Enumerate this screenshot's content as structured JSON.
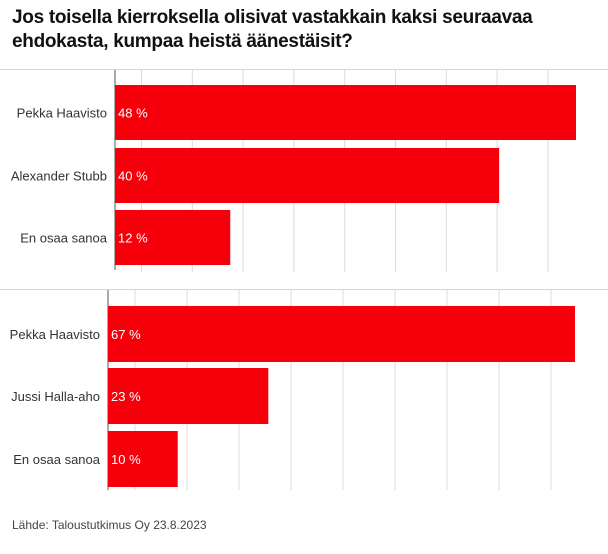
{
  "title": "Jos toisella kierroksella olisivat vastakkain kaksi seuraavaa ehdokasta, kumpaa heistä äänestäisit?",
  "source": "Lähde: Taloustutkimus Oy 23.8.2023",
  "colors": {
    "bar": "#f5000a",
    "grid": "#dcdcdc",
    "label": "#333333",
    "value_text": "#ffffff",
    "axis": "#555555"
  },
  "chart_data": [
    {
      "type": "bar",
      "orientation": "horizontal",
      "categories": [
        "Pekka Haavisto",
        "Alexander Stubb",
        "En osaa sanoa"
      ],
      "values": [
        48,
        40,
        12
      ],
      "value_labels": [
        "48 %",
        "40 %",
        "12 %"
      ],
      "xlim": [
        0,
        48
      ],
      "grid": true
    },
    {
      "type": "bar",
      "orientation": "horizontal",
      "categories": [
        "Pekka Haavisto",
        "Jussi Halla-aho",
        "En osaa sanoa"
      ],
      "values": [
        67,
        23,
        10
      ],
      "value_labels": [
        "67 %",
        "23 %",
        "10 %"
      ],
      "xlim": [
        0,
        67
      ],
      "grid": true
    }
  ]
}
